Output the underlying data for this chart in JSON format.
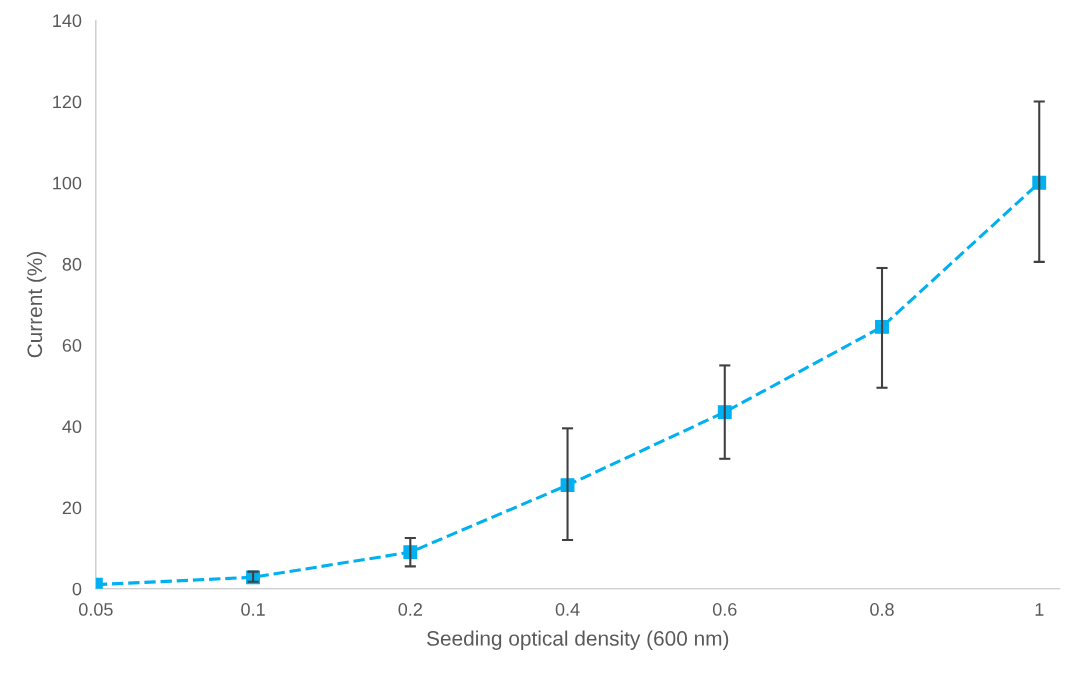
{
  "chart_data": {
    "type": "line",
    "xlabel": "Seeding optical density (600 nm)",
    "ylabel": "Current (%)",
    "categories": [
      "0.05",
      "0.1",
      "0.2",
      "0.4",
      "0.6",
      "0.8",
      "1"
    ],
    "series": [
      {
        "color": "#00b0f0",
        "values": [
          1,
          2.8,
          9,
          25.5,
          43.5,
          64.5,
          100
        ],
        "errors": [
          null,
          [
            1.7,
            4.2
          ],
          [
            5.5,
            12.5
          ],
          [
            12,
            39.5
          ],
          [
            32,
            55
          ],
          [
            49.5,
            79
          ],
          [
            80.5,
            120
          ]
        ]
      }
    ],
    "ylim": [
      0,
      140
    ],
    "yticks": [
      0,
      20,
      40,
      60,
      80,
      100,
      120,
      140
    ],
    "marker": "square",
    "line_style": "dashed",
    "grid": false,
    "legend": false
  }
}
